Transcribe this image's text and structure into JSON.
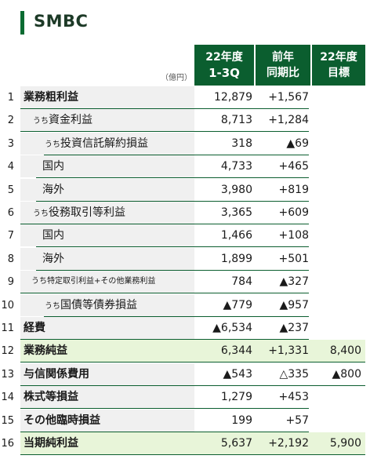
{
  "brand": "SMBC",
  "unit": "（億円）",
  "headers": [
    {
      "l1": "22年度",
      "l2": "1-3Q"
    },
    {
      "l1": "前年",
      "l2": "同期比"
    },
    {
      "l1": "22年度",
      "l2": "目標"
    }
  ],
  "rows": [
    {
      "no": "1",
      "prefix": "",
      "label": "業務粗利益",
      "c1": "12,879",
      "c2": "+1,567",
      "c3": ""
    },
    {
      "no": "2",
      "prefix": "うち",
      "label": "資金利益",
      "c1": "8,713",
      "c2": "+1,284",
      "c3": ""
    },
    {
      "no": "3",
      "prefix": "うち",
      "label": "投資信託解約損益",
      "c1": "318",
      "c2": "▲69",
      "c3": ""
    },
    {
      "no": "4",
      "prefix": "",
      "label": "国内",
      "c1": "4,733",
      "c2": "+465",
      "c3": ""
    },
    {
      "no": "5",
      "prefix": "",
      "label": "海外",
      "c1": "3,980",
      "c2": "+819",
      "c3": ""
    },
    {
      "no": "6",
      "prefix": "うち",
      "label": "役務取引等利益",
      "c1": "3,365",
      "c2": "+609",
      "c3": ""
    },
    {
      "no": "7",
      "prefix": "",
      "label": "国内",
      "c1": "1,466",
      "c2": "+108",
      "c3": ""
    },
    {
      "no": "8",
      "prefix": "",
      "label": "海外",
      "c1": "1,899",
      "c2": "+501",
      "c3": ""
    },
    {
      "no": "9",
      "prefix": "",
      "label": "うち特定取引利益+その他業務利益",
      "c1": "784",
      "c2": "▲327",
      "c3": ""
    },
    {
      "no": "10",
      "prefix": "うち",
      "label": "国債等債券損益",
      "c1": "▲779",
      "c2": "▲957",
      "c3": ""
    },
    {
      "no": "11",
      "prefix": "",
      "label": "経費",
      "c1": "▲6,534",
      "c2": "▲237",
      "c3": ""
    },
    {
      "no": "12",
      "prefix": "",
      "label": "業務純益",
      "c1": "6,344",
      "c2": "+1,331",
      "c3": "8,400"
    },
    {
      "no": "13",
      "prefix": "",
      "label": "与信関係費用",
      "c1": "▲543",
      "c2": "△335",
      "c3": "▲800"
    },
    {
      "no": "14",
      "prefix": "",
      "label": "株式等損益",
      "c1": "1,279",
      "c2": "+453",
      "c3": ""
    },
    {
      "no": "15",
      "prefix": "",
      "label": "その他臨時損益",
      "c1": "199",
      "c2": "+57",
      "c3": ""
    },
    {
      "no": "16",
      "prefix": "",
      "label": "当期純利益",
      "c1": "5,637",
      "c2": "+2,192",
      "c3": "5,900"
    }
  ]
}
